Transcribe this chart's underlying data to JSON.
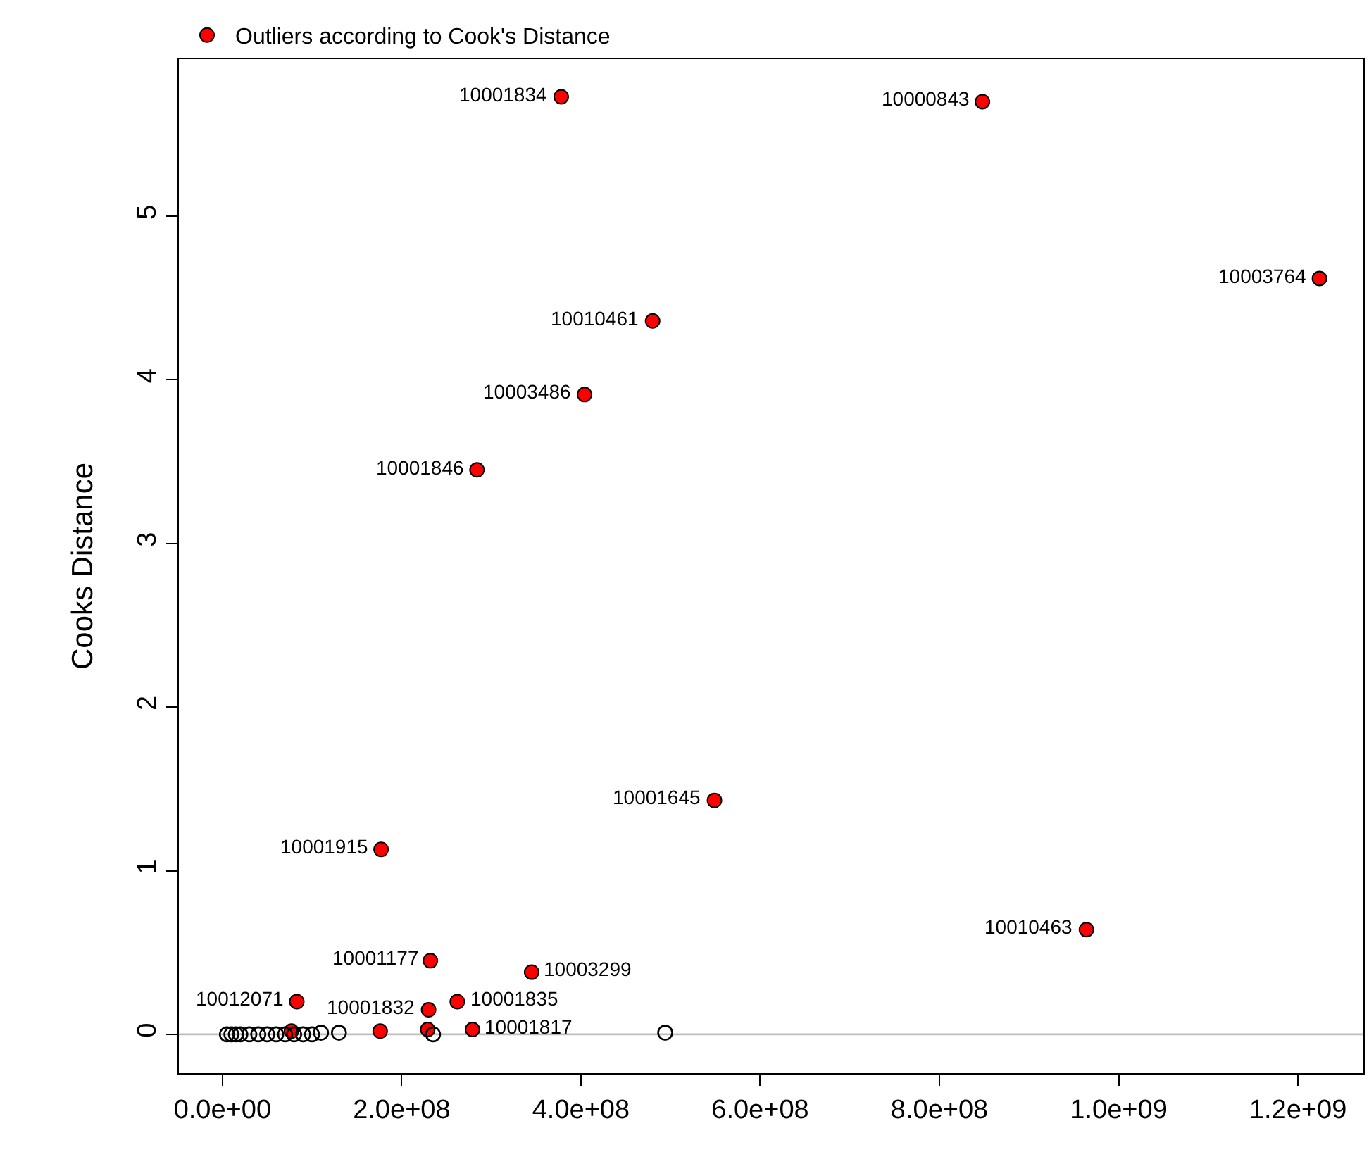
{
  "chart_data": {
    "type": "scatter",
    "ylabel": "Cooks Distance",
    "xlim": [
      -48600000.0,
      1273000000.0
    ],
    "ylim": [
      -0.237,
      5.96
    ],
    "xticks": [
      {
        "value": 0,
        "label": "0.0e+00"
      },
      {
        "value": 200000000,
        "label": "2.0e+08"
      },
      {
        "value": 400000000,
        "label": "4.0e+08"
      },
      {
        "value": 600000000,
        "label": "6.0e+08"
      },
      {
        "value": 800000000,
        "label": "8.0e+08"
      },
      {
        "value": 1000000000,
        "label": "1.0e+09"
      },
      {
        "value": 1200000000,
        "label": "1.2e+09"
      }
    ],
    "yticks": [
      0,
      1,
      2,
      3,
      4,
      5
    ],
    "grid": false,
    "legend": "top left",
    "marker": "circle",
    "annotations": [
      {
        "text": "10001834",
        "x": 378000000.0,
        "y": 5.73
      },
      {
        "text": "10000843",
        "x": 848000000.0,
        "y": 5.7
      },
      {
        "text": "10003764",
        "x": 1224000000.0,
        "y": 4.62
      },
      {
        "text": "10010461",
        "x": 480000000.0,
        "y": 4.36
      },
      {
        "text": "10003486",
        "x": 404000000.0,
        "y": 3.91
      },
      {
        "text": "10001846",
        "x": 284000000.0,
        "y": 3.45
      },
      {
        "text": "10001645",
        "x": 549000000.0,
        "y": 1.43
      },
      {
        "text": "10001915",
        "x": 177000000.0,
        "y": 1.13
      },
      {
        "text": "10010463",
        "x": 964000000.0,
        "y": 0.64
      },
      {
        "text": "10001177",
        "x": 232000000.0,
        "y": 0.45
      },
      {
        "text": "10003299",
        "x": 345000000.0,
        "y": 0.38
      },
      {
        "text": "10012071",
        "x": 83000000.0,
        "y": 0.2
      },
      {
        "text": "10001835",
        "x": 262000000.0,
        "y": 0.2
      },
      {
        "text": "10001832",
        "x": 230000000.0,
        "y": 0.15
      },
      {
        "text": "10001817",
        "x": 279000000.0,
        "y": 0.03
      }
    ],
    "ref_lines": [
      {
        "axis": "y",
        "value": 0,
        "color": "#bebebe"
      }
    ],
    "series": [
      {
        "name": "Outliers according to Cook's Distance",
        "color": "#ff0000",
        "x": [
          378000000.0,
          848000000.0,
          1224000000.0,
          480000000.0,
          404000000.0,
          284000000.0,
          549000000.0,
          177000000.0,
          964000000.0,
          232000000.0,
          345000000.0,
          83000000.0,
          262000000.0,
          230000000.0,
          279000000.0,
          229000000.0,
          176000000.0,
          77000000.0
        ],
        "values": [
          5.73,
          5.7,
          4.62,
          4.36,
          3.91,
          3.45,
          1.43,
          1.13,
          0.64,
          0.45,
          0.38,
          0.2,
          0.2,
          0.15,
          0.03,
          0.03,
          0.02,
          0.02
        ]
      },
      {
        "color": "#000000",
        "marker": "open circle",
        "x": [
          5000000.0,
          10000000.0,
          15000000.0,
          20000000.0,
          30000000.0,
          40000000.0,
          50000000.0,
          60000000.0,
          70000000.0,
          80000000.0,
          90000000.0,
          100000000.0,
          110000000.0,
          130000000.0,
          235000000.0,
          494000000.0
        ],
        "values": [
          0,
          0,
          0,
          0,
          0,
          0,
          0,
          0,
          0,
          0,
          0,
          0,
          0.01,
          0.01,
          0,
          0.01
        ]
      }
    ]
  }
}
